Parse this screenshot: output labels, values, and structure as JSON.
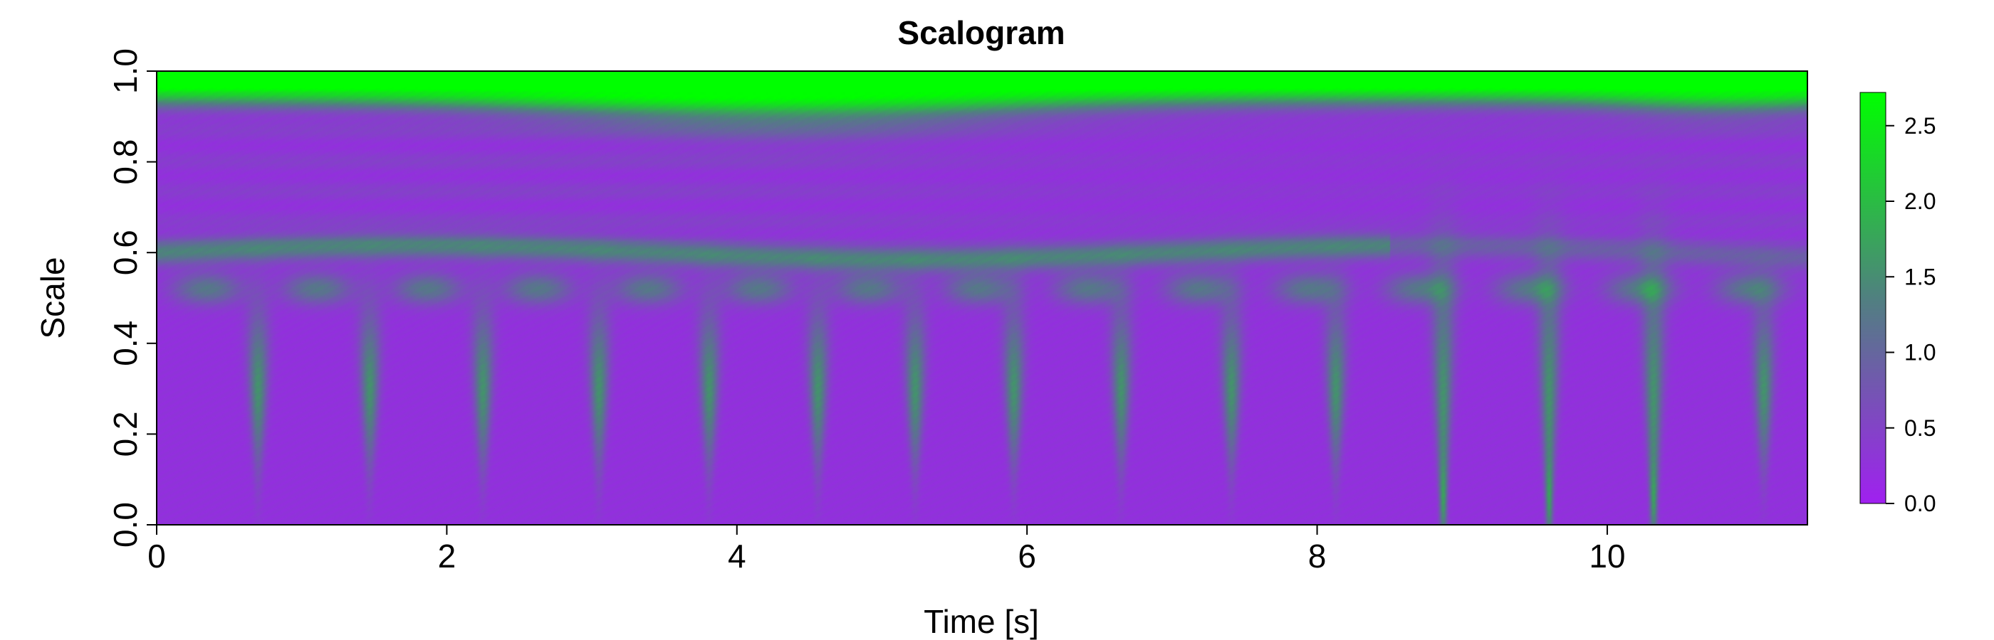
{
  "chart_data": {
    "type": "heatmap",
    "title": "Scalogram",
    "xlabel": "Time [s]",
    "ylabel": "Scale",
    "xlim": [
      0,
      11.38
    ],
    "ylim": [
      0,
      1.0
    ],
    "x_ticks": [
      0,
      2,
      4,
      6,
      8,
      10
    ],
    "x_tick_labels": [
      "0",
      "2",
      "4",
      "6",
      "8",
      "10"
    ],
    "y_ticks": [
      0.0,
      0.2,
      0.4,
      0.6,
      0.8,
      1.0
    ],
    "y_tick_labels": [
      "0.0",
      "0.2",
      "0.4",
      "0.6",
      "0.8",
      "1.0"
    ],
    "colorbar": {
      "min": 0.0,
      "max": 2.72,
      "ticks": [
        0.0,
        0.5,
        1.0,
        1.5,
        2.0,
        2.5
      ],
      "tick_labels": [
        "0.0",
        "0.5",
        "1.0",
        "1.5",
        "2.0",
        "2.5"
      ],
      "low_color": "#a020f0",
      "high_color": "#00ff00"
    },
    "features": {
      "top_band": {
        "scale_center": 0.975,
        "width": 0.045,
        "amplitude": 2.7
      },
      "mid_band": {
        "scale_center": 0.6,
        "amplitude": 1.15,
        "time_end": 8.5
      },
      "lower_band": {
        "scale_center": 0.52,
        "amplitude": 1.0
      },
      "spike_times": [
        0.7,
        1.47,
        2.25,
        3.05,
        3.81,
        4.56,
        5.23,
        5.91,
        6.65,
        7.41,
        8.13,
        8.87,
        9.6,
        10.32,
        11.08
      ],
      "spike_peak_value": 1.3,
      "bright_spike_times": [
        8.87,
        9.6,
        10.32
      ]
    }
  }
}
